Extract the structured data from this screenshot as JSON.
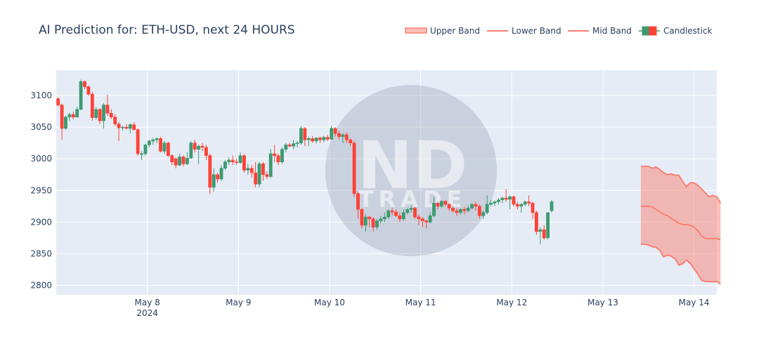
{
  "colors": {
    "up": "#3d9970",
    "down": "#ff4136",
    "band": "#fa8072",
    "band_fill": "rgba(250,128,114,0.5)",
    "plot_bg": "#e5ecf6",
    "grid": "#ffffff",
    "title": "#2a3f5f",
    "tick": "#2a3f5f"
  },
  "watermark": {
    "brand_top": "ND",
    "brand_bottom": "TRADE"
  },
  "chart_data": {
    "type": "candlestick",
    "title": "AI Prediction for: ETH-USD, next 24 HOURS",
    "xlabel": "",
    "ylabel": "",
    "grid": true,
    "legend_position": "top-right",
    "legend": [
      {
        "name": "Upper Band",
        "kind": "band"
      },
      {
        "name": "Lower Band",
        "kind": "line"
      },
      {
        "name": "Mid Band",
        "kind": "line"
      },
      {
        "name": "Candlestick",
        "kind": "candle"
      }
    ],
    "x_range": [
      "2024-05-07 00:00",
      "2024-05-14 06:00"
    ],
    "y_range": [
      2785,
      3140
    ],
    "x_ticks": [
      {
        "value": "2024-05-08",
        "label": "May 8",
        "sublabel": "2024"
      },
      {
        "value": "2024-05-09",
        "label": "May 9"
      },
      {
        "value": "2024-05-10",
        "label": "May 10"
      },
      {
        "value": "2024-05-11",
        "label": "May 11"
      },
      {
        "value": "2024-05-12",
        "label": "May 12"
      },
      {
        "value": "2024-05-13",
        "label": "May 13"
      },
      {
        "value": "2024-05-14",
        "label": "May 14"
      }
    ],
    "y_ticks": [
      2800,
      2850,
      2900,
      2950,
      3000,
      3050,
      3100
    ],
    "candles_start": "2024-05-07 00:00",
    "candle_interval_hours": 1,
    "candles_ohlc": [
      [
        3095,
        3097,
        3083,
        3085
      ],
      [
        3085,
        3087,
        3030,
        3048
      ],
      [
        3048,
        3068,
        3046,
        3066
      ],
      [
        3066,
        3073,
        3060,
        3070
      ],
      [
        3070,
        3075,
        3062,
        3066
      ],
      [
        3066,
        3082,
        3065,
        3078
      ],
      [
        3078,
        3125,
        3077,
        3122
      ],
      [
        3122,
        3124,
        3110,
        3114
      ],
      [
        3114,
        3116,
        3100,
        3102
      ],
      [
        3102,
        3106,
        3060,
        3065
      ],
      [
        3065,
        3082,
        3062,
        3078
      ],
      [
        3078,
        3080,
        3055,
        3060
      ],
      [
        3060,
        3088,
        3048,
        3085
      ],
      [
        3085,
        3101,
        3068,
        3072
      ],
      [
        3072,
        3078,
        3063,
        3066
      ],
      [
        3066,
        3070,
        3052,
        3055
      ],
      [
        3055,
        3058,
        3028,
        3049
      ],
      [
        3049,
        3052,
        3045,
        3050
      ],
      [
        3050,
        3055,
        3047,
        3048
      ],
      [
        3048,
        3056,
        3040,
        3054
      ],
      [
        3054,
        3058,
        3045,
        3046
      ],
      [
        3046,
        3048,
        3005,
        3008
      ],
      [
        3008,
        3012,
        2998,
        3008
      ],
      [
        3008,
        3024,
        3005,
        3022
      ],
      [
        3022,
        3030,
        3018,
        3028
      ],
      [
        3028,
        3033,
        3022,
        3030
      ],
      [
        3030,
        3034,
        3025,
        3032
      ],
      [
        3032,
        3035,
        3010,
        3012
      ],
      [
        3012,
        3028,
        3008,
        3025
      ],
      [
        3025,
        3027,
        3003,
        3005
      ],
      [
        3005,
        3007,
        2990,
        2995
      ],
      [
        3000,
        3002,
        2985,
        2990
      ],
      [
        2990,
        3008,
        2988,
        3003
      ],
      [
        3003,
        3006,
        2988,
        2992
      ],
      [
        2992,
        3010,
        2990,
        3001
      ],
      [
        3001,
        3028,
        3000,
        3025
      ],
      [
        3025,
        3030,
        3010,
        3015
      ],
      [
        3015,
        3022,
        2992,
        3020
      ],
      [
        3020,
        3025,
        3012,
        3018
      ],
      [
        3018,
        3022,
        2998,
        3005
      ],
      [
        3005,
        3008,
        2944,
        2955
      ],
      [
        2955,
        2985,
        2948,
        2975
      ],
      [
        2975,
        2978,
        2962,
        2968
      ],
      [
        2968,
        2990,
        2965,
        2985
      ],
      [
        2985,
        2998,
        2982,
        2995
      ],
      [
        2995,
        3002,
        2990,
        2998
      ],
      [
        2998,
        3005,
        2990,
        2995
      ],
      [
        2995,
        3000,
        2990,
        2994
      ],
      [
        2994,
        3010,
        2992,
        3005
      ],
      [
        3005,
        3008,
        2978,
        2982
      ],
      [
        2982,
        2992,
        2975,
        2985
      ],
      [
        2985,
        2990,
        2970,
        2978
      ],
      [
        2978,
        2995,
        2955,
        2960
      ],
      [
        2960,
        2995,
        2955,
        2992
      ],
      [
        2992,
        2995,
        2965,
        2975
      ],
      [
        2975,
        2980,
        2968,
        2972
      ],
      [
        2972,
        3015,
        2970,
        3008
      ],
      [
        3008,
        3022,
        2995,
        3005
      ],
      [
        3005,
        3008,
        2990,
        2995
      ],
      [
        2995,
        3018,
        2992,
        3015
      ],
      [
        3015,
        3025,
        3010,
        3022
      ],
      [
        3022,
        3025,
        3018,
        3020
      ],
      [
        3020,
        3030,
        3015,
        3024
      ],
      [
        3024,
        3028,
        3018,
        3025
      ],
      [
        3025,
        3052,
        3022,
        3048
      ],
      [
        3048,
        3050,
        3020,
        3030
      ],
      [
        3030,
        3035,
        3020,
        3032
      ],
      [
        3032,
        3036,
        3025,
        3028
      ],
      [
        3028,
        3034,
        3024,
        3033
      ],
      [
        3033,
        3035,
        3025,
        3030
      ],
      [
        3030,
        3036,
        3026,
        3034
      ],
      [
        3034,
        3038,
        3028,
        3031
      ],
      [
        3031,
        3052,
        3030,
        3048
      ],
      [
        3048,
        3050,
        3035,
        3040
      ],
      [
        3040,
        3044,
        3030,
        3035
      ],
      [
        3035,
        3040,
        3025,
        3038
      ],
      [
        3038,
        3042,
        3025,
        3030
      ],
      [
        3030,
        3032,
        3020,
        3025
      ],
      [
        3025,
        3028,
        2940,
        2945
      ],
      [
        2945,
        2948,
        2905,
        2920
      ],
      [
        2920,
        2922,
        2890,
        2895
      ],
      [
        2895,
        2912,
        2885,
        2908
      ],
      [
        2908,
        2910,
        2892,
        2905
      ],
      [
        2905,
        2908,
        2885,
        2892
      ],
      [
        2892,
        2905,
        2888,
        2902
      ],
      [
        2902,
        2910,
        2898,
        2905
      ],
      [
        2905,
        2915,
        2900,
        2908
      ],
      [
        2908,
        2920,
        2905,
        2918
      ],
      [
        2918,
        2922,
        2910,
        2916
      ],
      [
        2916,
        2920,
        2908,
        2910
      ],
      [
        2910,
        2915,
        2900,
        2905
      ],
      [
        2905,
        2920,
        2902,
        2915
      ],
      [
        2915,
        2922,
        2912,
        2920
      ],
      [
        2920,
        2926,
        2915,
        2922
      ],
      [
        2922,
        2924,
        2905,
        2908
      ],
      [
        2908,
        2912,
        2895,
        2905
      ],
      [
        2905,
        2908,
        2892,
        2902
      ],
      [
        2902,
        2904,
        2890,
        2900
      ],
      [
        2900,
        2915,
        2898,
        2910
      ],
      [
        2910,
        2940,
        2908,
        2930
      ],
      [
        2930,
        2932,
        2920,
        2925
      ],
      [
        2925,
        2935,
        2922,
        2933
      ],
      [
        2933,
        2935,
        2925,
        2928
      ],
      [
        2928,
        2930,
        2918,
        2922
      ],
      [
        2922,
        2925,
        2915,
        2918
      ],
      [
        2918,
        2922,
        2910,
        2915
      ],
      [
        2915,
        2922,
        2912,
        2920
      ],
      [
        2920,
        2924,
        2912,
        2918
      ],
      [
        2918,
        2926,
        2915,
        2922
      ],
      [
        2922,
        2930,
        2920,
        2928
      ],
      [
        2928,
        2932,
        2918,
        2925
      ],
      [
        2925,
        2928,
        2905,
        2910
      ],
      [
        2910,
        2918,
        2905,
        2915
      ],
      [
        2915,
        2942,
        2912,
        2928
      ],
      [
        2928,
        2935,
        2925,
        2930
      ],
      [
        2930,
        2934,
        2925,
        2932
      ],
      [
        2932,
        2938,
        2928,
        2935
      ],
      [
        2935,
        2940,
        2930,
        2938
      ],
      [
        2938,
        2952,
        2932,
        2936
      ],
      [
        2936,
        2942,
        2920,
        2940
      ],
      [
        2940,
        2942,
        2925,
        2928
      ],
      [
        2928,
        2932,
        2920,
        2925
      ],
      [
        2925,
        2930,
        2915,
        2928
      ],
      [
        2928,
        2934,
        2925,
        2932
      ],
      [
        2932,
        2942,
        2925,
        2930
      ],
      [
        2930,
        2932,
        2905,
        2915
      ],
      [
        2915,
        2918,
        2880,
        2885
      ],
      [
        2885,
        2892,
        2865,
        2888
      ],
      [
        2888,
        2895,
        2872,
        2875
      ],
      [
        2875,
        2915,
        2873,
        2915
      ],
      [
        2918,
        2935,
        2915,
        2932
      ]
    ],
    "bands_start": "2024-05-13 10:00",
    "band_interval_hours": 1,
    "upper_band": [
      2988,
      2988,
      2988,
      2985,
      2987,
      2983,
      2978,
      2975,
      2976,
      2974,
      2974,
      2964,
      2956,
      2962,
      2962,
      2958,
      2952,
      2946,
      2940,
      2942,
      2940,
      2930
    ],
    "mid_band": [
      2925,
      2925,
      2925,
      2924,
      2920,
      2916,
      2912,
      2910,
      2906,
      2902,
      2898,
      2896,
      2896,
      2895,
      2892,
      2886,
      2878,
      2874,
      2874,
      2874,
      2874,
      2872
    ],
    "lower_band": [
      2865,
      2865,
      2864,
      2861,
      2860,
      2855,
      2845,
      2848,
      2846,
      2842,
      2832,
      2834,
      2840,
      2835,
      2826,
      2818,
      2808,
      2806,
      2806,
      2806,
      2806,
      2802
    ]
  }
}
